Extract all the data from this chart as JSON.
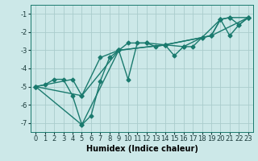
{
  "xlabel": "Humidex (Indice chaleur)",
  "background_color": "#cce8e8",
  "grid_color": "#aacccc",
  "line_color": "#1a7a6e",
  "marker": "D",
  "markersize": 2.5,
  "linewidth": 1.0,
  "xlim": [
    -0.5,
    23.5
  ],
  "ylim": [
    -7.5,
    -0.5
  ],
  "xticks": [
    0,
    1,
    2,
    3,
    4,
    5,
    6,
    7,
    8,
    9,
    10,
    11,
    12,
    13,
    14,
    15,
    16,
    17,
    18,
    19,
    20,
    21,
    22,
    23
  ],
  "yticks": [
    -7,
    -6,
    -5,
    -4,
    -3,
    -2,
    -1
  ],
  "series": [
    {
      "x": [
        0,
        1,
        2,
        3,
        4,
        5,
        6,
        7,
        8,
        9,
        10,
        11,
        12,
        13,
        14,
        15,
        16,
        17,
        18,
        19,
        20,
        21,
        22,
        23
      ],
      "y": [
        -5.0,
        -4.9,
        -4.6,
        -4.6,
        -5.5,
        -7.1,
        -6.6,
        -4.7,
        -3.4,
        -3.0,
        -4.6,
        -2.6,
        -2.6,
        -2.8,
        -2.7,
        -3.3,
        -2.8,
        -2.8,
        -2.3,
        -2.2,
        -1.3,
        -2.2,
        -1.6,
        -1.2
      ]
    },
    {
      "x": [
        0,
        4,
        5,
        7,
        9,
        10,
        12,
        14,
        16,
        18,
        20,
        21,
        23
      ],
      "y": [
        -5.0,
        -4.6,
        -5.5,
        -3.4,
        -3.0,
        -2.6,
        -2.6,
        -2.7,
        -2.8,
        -2.3,
        -1.3,
        -1.2,
        -1.2
      ]
    },
    {
      "x": [
        0,
        5,
        9,
        14,
        19,
        23
      ],
      "y": [
        -5.0,
        -5.5,
        -3.0,
        -2.7,
        -2.2,
        -1.2
      ]
    },
    {
      "x": [
        0,
        5,
        9,
        14,
        19,
        20,
        21,
        22,
        23
      ],
      "y": [
        -5.0,
        -7.1,
        -3.0,
        -2.7,
        -2.2,
        -1.3,
        -1.2,
        -1.6,
        -1.2
      ]
    }
  ],
  "font_size_tick": 6,
  "font_size_label": 7
}
